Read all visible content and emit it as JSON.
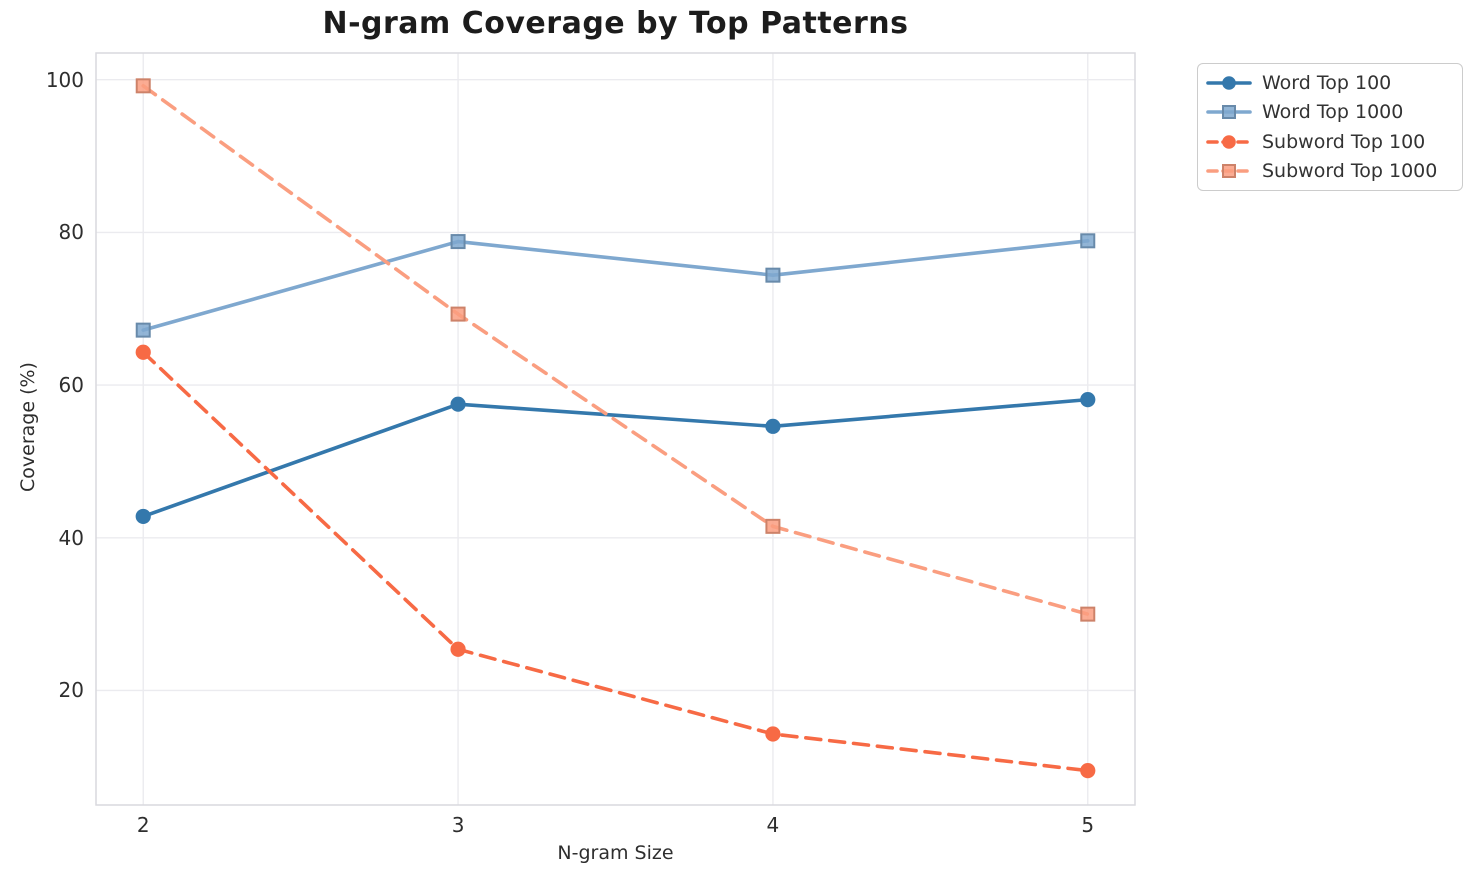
{
  "title": "N-gram Coverage by Top Patterns",
  "chart_data": {
    "type": "line",
    "title": "N-gram Coverage by Top Patterns",
    "xlabel": "N-gram Size",
    "ylabel": "Coverage (%)",
    "x": [
      2,
      3,
      4,
      5
    ],
    "xticks": [
      "2",
      "3",
      "4",
      "5"
    ],
    "yticks": [
      20,
      40,
      60,
      80,
      100
    ],
    "xlim": [
      1.85,
      5.15
    ],
    "ylim": [
      5,
      103.5
    ],
    "grid": true,
    "grid_color": "#ebebef",
    "spine_color": "#d9d9de",
    "legend_position": "upper right",
    "series": [
      {
        "name": "Word Top 100",
        "values": [
          42.8,
          57.5,
          54.6,
          58.1
        ],
        "color": "#3478AC",
        "marker": "circle",
        "line_style": "solid"
      },
      {
        "name": "Word Top 1000",
        "values": [
          67.2,
          78.8,
          74.4,
          78.9
        ],
        "color": "#7FA8CF",
        "marker": "square",
        "line_style": "solid"
      },
      {
        "name": "Subword Top 100",
        "values": [
          64.3,
          25.4,
          14.3,
          9.5
        ],
        "color": "#F76A45",
        "marker": "circle",
        "line_style": "dashed"
      },
      {
        "name": "Subword Top 1000",
        "values": [
          99.2,
          69.3,
          41.5,
          30.0
        ],
        "color": "#FA9E80",
        "marker": "square",
        "line_style": "dashed"
      }
    ]
  }
}
